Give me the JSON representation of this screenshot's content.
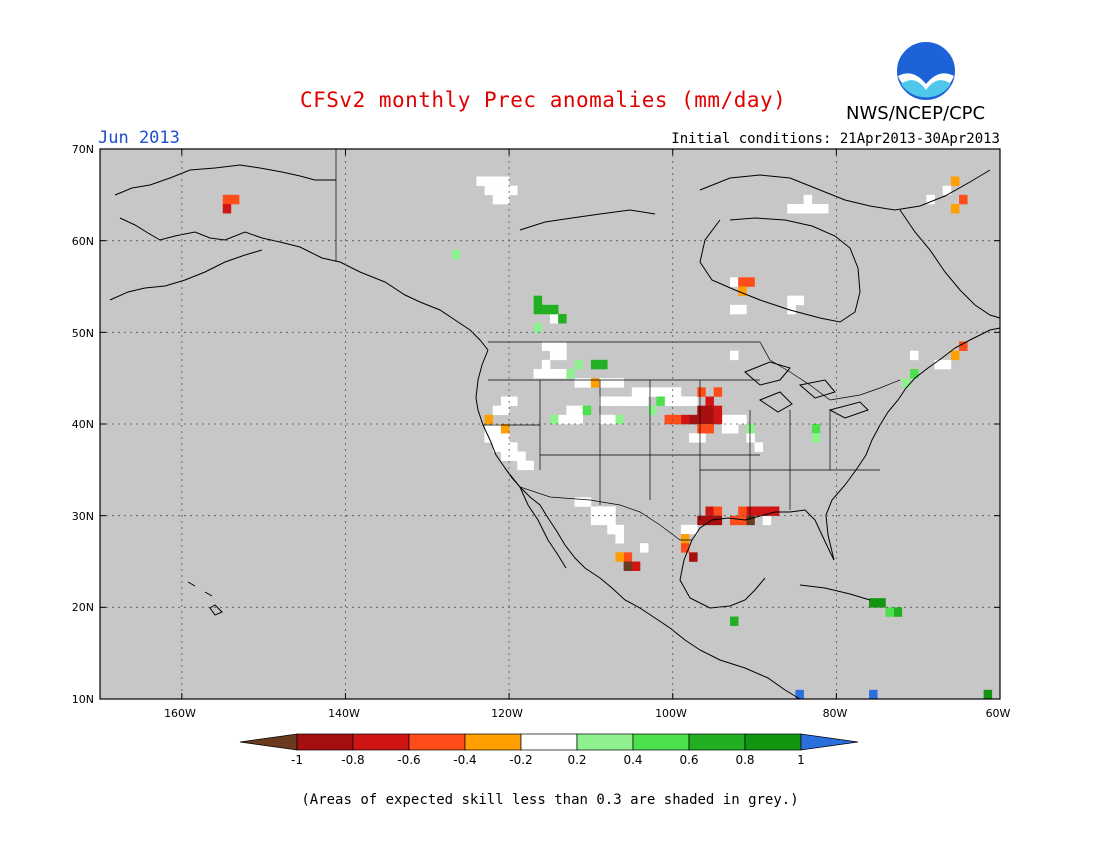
{
  "title": "CFSv2 monthly Prec anomalies (mm/day)",
  "month": "Jun 2013",
  "initial_conditions": "Initial conditions: 21Apr2013-30Apr2013",
  "organization": "NWS/NCEP/CPC",
  "logo_text": "NOAA",
  "footnote": "(Areas of expected skill less than 0.3 are shaded in grey.)",
  "lat_labels": [
    "70N",
    "60N",
    "50N",
    "40N",
    "30N",
    "20N",
    "10N"
  ],
  "lon_labels": [
    "160W",
    "140W",
    "120W",
    "100W",
    "80W",
    "60W"
  ],
  "colorbar": {
    "labels": [
      "-1",
      "-0.8",
      "-0.6",
      "-0.4",
      "-0.2",
      "0.2",
      "0.4",
      "0.6",
      "0.8",
      "1"
    ],
    "colors": [
      "#6b3a1e",
      "#a50f0f",
      "#d01515",
      "#ff4d1a",
      "#ff9f00",
      "#ffffff",
      "#8ef08e",
      "#4de04d",
      "#22b022",
      "#129612",
      "#2a6fdc"
    ]
  },
  "map_colors": {
    "background": "#c7c7c7",
    "coast": "#000000",
    "grid": "#555555"
  },
  "anomaly_cells": [
    {
      "lon": -154.5,
      "lat": 64.5,
      "v": -0.4
    },
    {
      "lon": -153.5,
      "lat": 64.5,
      "v": -0.4
    },
    {
      "lon": -154.5,
      "lat": 63.5,
      "v": -0.7
    },
    {
      "lon": -116.5,
      "lat": 53.5,
      "v": 0.7
    },
    {
      "lon": -115.5,
      "lat": 52.5,
      "v": 0.7
    },
    {
      "lon": -116.5,
      "lat": 52.5,
      "v": 0.7
    },
    {
      "lon": -114.5,
      "lat": 52.5,
      "v": 0.6
    },
    {
      "lon": -113.5,
      "lat": 51.5,
      "v": 0.6
    },
    {
      "lon": -116.5,
      "lat": 50.5,
      "v": 0.3
    },
    {
      "lon": -111.5,
      "lat": 46.5,
      "v": 0.3
    },
    {
      "lon": -109.5,
      "lat": 46.5,
      "v": 0.6
    },
    {
      "lon": -108.5,
      "lat": 46.5,
      "v": 0.7
    },
    {
      "lon": -112.5,
      "lat": 45.5,
      "v": 0.3
    },
    {
      "lon": -109.5,
      "lat": 44.5,
      "v": -0.3
    },
    {
      "lon": -101.5,
      "lat": 42.5,
      "v": 0.5
    },
    {
      "lon": -102.5,
      "lat": 41.5,
      "v": 0.3
    },
    {
      "lon": -106.5,
      "lat": 40.5,
      "v": 0.3
    },
    {
      "lon": -114.5,
      "lat": 40.5,
      "v": 0.3
    },
    {
      "lon": -110.5,
      "lat": 41.5,
      "v": 0.5
    },
    {
      "lon": -122.5,
      "lat": 40.5,
      "v": -0.3
    },
    {
      "lon": -120.5,
      "lat": 39.5,
      "v": -0.3
    },
    {
      "lon": -96.5,
      "lat": 43.5,
      "v": -0.4
    },
    {
      "lon": -94.5,
      "lat": 43.5,
      "v": -0.4
    },
    {
      "lon": -95.5,
      "lat": 42.5,
      "v": -0.6
    },
    {
      "lon": -96.5,
      "lat": 41.5,
      "v": -0.8
    },
    {
      "lon": -95.5,
      "lat": 41.5,
      "v": -0.8
    },
    {
      "lon": -94.5,
      "lat": 41.5,
      "v": -0.6
    },
    {
      "lon": -97.5,
      "lat": 40.5,
      "v": -0.8
    },
    {
      "lon": -96.5,
      "lat": 40.5,
      "v": -0.8
    },
    {
      "lon": -95.5,
      "lat": 40.5,
      "v": -0.8
    },
    {
      "lon": -94.5,
      "lat": 40.5,
      "v": -0.6
    },
    {
      "lon": -98.5,
      "lat": 40.5,
      "v": -0.6
    },
    {
      "lon": -99.5,
      "lat": 40.5,
      "v": -0.5
    },
    {
      "lon": -100.5,
      "lat": 40.5,
      "v": -0.5
    },
    {
      "lon": -96.5,
      "lat": 39.5,
      "v": -0.4
    },
    {
      "lon": -95.5,
      "lat": 39.5,
      "v": -0.4
    },
    {
      "lon": -90.5,
      "lat": 39.5,
      "v": 0.3
    },
    {
      "lon": -82.5,
      "lat": 39.5,
      "v": 0.5
    },
    {
      "lon": -82.5,
      "lat": 38.5,
      "v": 0.3
    },
    {
      "lon": -95.5,
      "lat": 30.5,
      "v": -0.6
    },
    {
      "lon": -94.5,
      "lat": 30.5,
      "v": -0.4
    },
    {
      "lon": -96.5,
      "lat": 29.5,
      "v": -0.8
    },
    {
      "lon": -95.5,
      "lat": 29.5,
      "v": -0.8
    },
    {
      "lon": -94.5,
      "lat": 29.5,
      "v": -0.8
    },
    {
      "lon": -92.5,
      "lat": 29.5,
      "v": -0.4
    },
    {
      "lon": -91.5,
      "lat": 29.5,
      "v": -0.4
    },
    {
      "lon": -90.5,
      "lat": 29.5,
      "v": -0.9
    },
    {
      "lon": -90.5,
      "lat": 30.5,
      "v": -0.6
    },
    {
      "lon": -89.5,
      "lat": 30.5,
      "v": -0.7
    },
    {
      "lon": -88.5,
      "lat": 30.5,
      "v": -0.7
    },
    {
      "lon": -87.5,
      "lat": 30.5,
      "v": -0.6
    },
    {
      "lon": -91.5,
      "lat": 30.5,
      "v": -0.5
    },
    {
      "lon": -98.5,
      "lat": 27.5,
      "v": -0.3
    },
    {
      "lon": -98.5,
      "lat": 26.5,
      "v": -0.4
    },
    {
      "lon": -97.5,
      "lat": 25.5,
      "v": -0.8
    },
    {
      "lon": -105.5,
      "lat": 25.5,
      "v": -0.5
    },
    {
      "lon": -105.5,
      "lat": 24.5,
      "v": -0.9
    },
    {
      "lon": -104.5,
      "lat": 24.5,
      "v": -0.7
    },
    {
      "lon": -106.5,
      "lat": 25.5,
      "v": -0.3
    },
    {
      "lon": -92.5,
      "lat": 18.5,
      "v": 0.7
    },
    {
      "lon": -75.5,
      "lat": 20.5,
      "v": 0.9
    },
    {
      "lon": -74.5,
      "lat": 20.5,
      "v": 0.9
    },
    {
      "lon": -72.5,
      "lat": 19.5,
      "v": 0.7
    },
    {
      "lon": -73.5,
      "lat": 19.5,
      "v": 0.4
    },
    {
      "lon": -91.5,
      "lat": 55.5,
      "v": -0.4
    },
    {
      "lon": -90.5,
      "lat": 55.5,
      "v": -0.4
    },
    {
      "lon": -91.5,
      "lat": 54.5,
      "v": -0.3
    },
    {
      "lon": -64.5,
      "lat": 48.5,
      "v": -0.4
    },
    {
      "lon": -65.5,
      "lat": 47.5,
      "v": -0.3
    },
    {
      "lon": -70.5,
      "lat": 45.5,
      "v": 0.4
    },
    {
      "lon": -71.5,
      "lat": 44.5,
      "v": 0.3
    },
    {
      "lon": -64.5,
      "lat": 64.5,
      "v": -0.4
    },
    {
      "lon": -65.5,
      "lat": 63.5,
      "v": -0.3
    },
    {
      "lon": -65.5,
      "lat": 66.5,
      "v": -0.3
    },
    {
      "lon": -61.5,
      "lat": 10.5,
      "v": 0.8
    },
    {
      "lon": -84.5,
      "lat": 10.5,
      "v": 1.0
    },
    {
      "lon": -75.5,
      "lat": 10.5,
      "v": 1.0
    },
    {
      "lon": -126.5,
      "lat": 58.5,
      "v": 0.3
    }
  ],
  "white_cells": [
    [
      -122.5,
      66.5
    ],
    [
      -121.5,
      66.5
    ],
    [
      -120.5,
      66.5
    ],
    [
      -123.5,
      66.5
    ],
    [
      -121.5,
      65.5
    ],
    [
      -122.5,
      65.5
    ],
    [
      -120.5,
      65.5
    ],
    [
      -121.5,
      64.5
    ],
    [
      -120.5,
      64.5
    ],
    [
      -119.5,
      65.5
    ],
    [
      -114.5,
      51.5
    ],
    [
      -113.5,
      51.5
    ],
    [
      -115.5,
      48.5
    ],
    [
      -114.5,
      48.5
    ],
    [
      -113.5,
      48.5
    ],
    [
      -114.5,
      47.5
    ],
    [
      -113.5,
      47.5
    ],
    [
      -115.5,
      46.5
    ],
    [
      -116.5,
      45.5
    ],
    [
      -115.5,
      45.5
    ],
    [
      -114.5,
      45.5
    ],
    [
      -113.5,
      45.5
    ],
    [
      -111.5,
      44.5
    ],
    [
      -110.5,
      44.5
    ],
    [
      -108.5,
      44.5
    ],
    [
      -107.5,
      44.5
    ],
    [
      -106.5,
      44.5
    ],
    [
      -104.5,
      43.5
    ],
    [
      -103.5,
      43.5
    ],
    [
      -102.5,
      43.5
    ],
    [
      -101.5,
      43.5
    ],
    [
      -100.5,
      43.5
    ],
    [
      -99.5,
      43.5
    ],
    [
      -108.5,
      42.5
    ],
    [
      -107.5,
      42.5
    ],
    [
      -106.5,
      42.5
    ],
    [
      -105.5,
      42.5
    ],
    [
      -104.5,
      42.5
    ],
    [
      -103.5,
      42.5
    ],
    [
      -100.5,
      42.5
    ],
    [
      -99.5,
      42.5
    ],
    [
      -98.5,
      42.5
    ],
    [
      -97.5,
      42.5
    ],
    [
      -120.5,
      42.5
    ],
    [
      -119.5,
      42.5
    ],
    [
      -121.5,
      41.5
    ],
    [
      -120.5,
      41.5
    ],
    [
      -112.5,
      41.5
    ],
    [
      -111.5,
      41.5
    ],
    [
      -113.5,
      40.5
    ],
    [
      -112.5,
      40.5
    ],
    [
      -111.5,
      40.5
    ],
    [
      -108.5,
      40.5
    ],
    [
      -107.5,
      40.5
    ],
    [
      -122.5,
      39.5
    ],
    [
      -121.5,
      39.5
    ],
    [
      -122.5,
      38.5
    ],
    [
      -121.5,
      38.5
    ],
    [
      -120.5,
      38.5
    ],
    [
      -121.5,
      37.5
    ],
    [
      -120.5,
      37.5
    ],
    [
      -119.5,
      37.5
    ],
    [
      -120.5,
      36.5
    ],
    [
      -119.5,
      36.5
    ],
    [
      -118.5,
      36.5
    ],
    [
      -118.5,
      35.5
    ],
    [
      -117.5,
      35.5
    ],
    [
      -93.5,
      40.5
    ],
    [
      -92.5,
      40.5
    ],
    [
      -91.5,
      40.5
    ],
    [
      -93.5,
      39.5
    ],
    [
      -92.5,
      39.5
    ],
    [
      -97.5,
      38.5
    ],
    [
      -96.5,
      38.5
    ],
    [
      -90.5,
      38.5
    ],
    [
      -89.5,
      37.5
    ],
    [
      -111.5,
      31.5
    ],
    [
      -110.5,
      31.5
    ],
    [
      -109.5,
      30.5
    ],
    [
      -108.5,
      30.5
    ],
    [
      -107.5,
      30.5
    ],
    [
      -109.5,
      29.5
    ],
    [
      -108.5,
      29.5
    ],
    [
      -107.5,
      29.5
    ],
    [
      -107.5,
      28.5
    ],
    [
      -106.5,
      28.5
    ],
    [
      -106.5,
      27.5
    ],
    [
      -103.5,
      26.5
    ],
    [
      -98.5,
      28.5
    ],
    [
      -97.5,
      28.5
    ],
    [
      -88.5,
      30.5
    ],
    [
      -88.5,
      29.5
    ],
    [
      -92.5,
      55.5
    ],
    [
      -92.5,
      52.5
    ],
    [
      -91.5,
      52.5
    ],
    [
      -85.5,
      53.5
    ],
    [
      -84.5,
      53.5
    ],
    [
      -85.5,
      52.5
    ],
    [
      -83.5,
      63.5
    ],
    [
      -82.5,
      63.5
    ],
    [
      -81.5,
      63.5
    ],
    [
      -84.5,
      63.5
    ],
    [
      -85.5,
      63.5
    ],
    [
      -83.5,
      64.5
    ],
    [
      -68.5,
      64.5
    ],
    [
      -66.5,
      65.5
    ],
    [
      -70.5,
      47.5
    ],
    [
      -66.5,
      46.5
    ],
    [
      -67.5,
      46.5
    ],
    [
      -92.5,
      47.5
    ]
  ]
}
